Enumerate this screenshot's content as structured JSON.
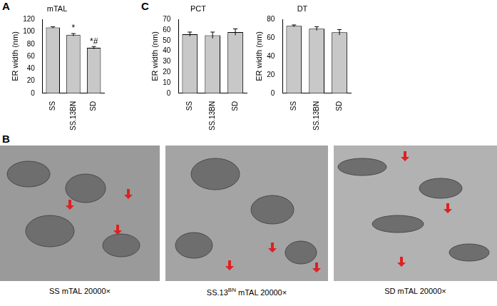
{
  "chart_data": [
    {
      "type": "bar",
      "title": "mTAL",
      "ylabel": "ER width (nm)",
      "categories": [
        "SS",
        "SS.13BN",
        "SD"
      ],
      "values": [
        107,
        95,
        74
      ],
      "errors": [
        1,
        2,
        2
      ],
      "significance": [
        null,
        "*",
        "*#"
      ],
      "color": "#c8c8c8",
      "ylim": [
        0,
        120
      ],
      "yticks": [
        0,
        20,
        40,
        60,
        80,
        100,
        120
      ],
      "grid": false
    },
    {
      "type": "bar",
      "title": "PCT",
      "ylabel": "ER width (nm)",
      "categories": [
        "SS",
        "SS.13BN",
        "SD"
      ],
      "values": [
        56,
        55,
        58
      ],
      "errors": [
        2,
        3,
        3
      ],
      "significance": [
        null,
        null,
        null
      ],
      "color": "#c8c8c8",
      "ylim": [
        0,
        70
      ],
      "yticks": [
        0,
        10,
        20,
        30,
        40,
        50,
        60,
        70
      ],
      "grid": false
    },
    {
      "type": "bar",
      "title": "DT",
      "ylabel": "ER width (nm)",
      "categories": [
        "SS",
        "SS.13BN",
        "SD"
      ],
      "values": [
        73,
        70,
        66
      ],
      "errors": [
        1,
        2,
        3
      ],
      "significance": [
        null,
        null,
        null
      ],
      "color": "#c8c8c8",
      "ylim": [
        0,
        80
      ],
      "yticks": [
        0,
        20,
        40,
        60,
        80
      ],
      "grid": false
    }
  ],
  "panel_labels": [
    "A",
    "B",
    "C"
  ],
  "images": [
    {
      "caption": "SS mTAL 20000×"
    },
    {
      "caption": "SS.13BN mTAL 20000×",
      "superscript": "BN"
    },
    {
      "caption": "SD mTAL 20000×"
    }
  ]
}
